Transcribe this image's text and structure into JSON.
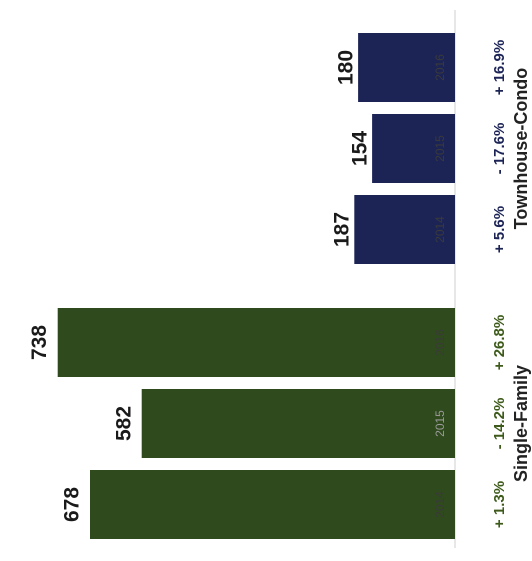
{
  "chart_data": {
    "type": "bar",
    "orientation": "horizontal",
    "grid": false,
    "xlim": [
      0,
      800
    ],
    "groups": [
      {
        "name": "Single-Family",
        "color": "#2f4a1c",
        "pct_color": "#3d5a1a",
        "categories": [
          "2014",
          "2015",
          "2016"
        ],
        "values": [
          678,
          582,
          738
        ],
        "value_labels": [
          "678",
          "582",
          "738"
        ],
        "changes": [
          "+ 1.3%",
          "- 14.2%",
          "+ 26.8%"
        ]
      },
      {
        "name": "Townhouse-Condo",
        "color": "#1c2456",
        "pct_color": "#1c2456",
        "categories": [
          "2014",
          "2015",
          "2016"
        ],
        "values": [
          187,
          154,
          180
        ],
        "value_labels": [
          "187",
          "154",
          "180"
        ],
        "changes": [
          "+ 5.6%",
          "- 17.6%",
          "+ 16.9%"
        ]
      }
    ]
  }
}
